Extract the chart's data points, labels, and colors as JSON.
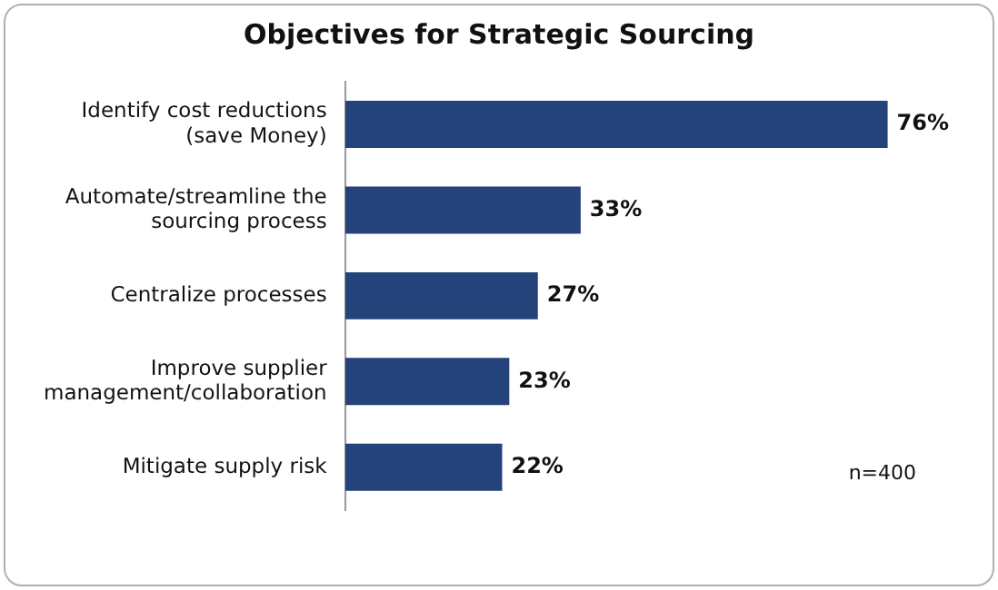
{
  "chart_data": {
    "type": "bar",
    "orientation": "horizontal",
    "title": "Objectives for Strategic Sourcing",
    "categories": [
      "Identify cost reductions (save Money)",
      "Automate/streamline the sourcing process",
      "Centralize processes",
      "Improve supplier management/collaboration",
      "Mitigate supply risk"
    ],
    "values": [
      76,
      33,
      27,
      23,
      22
    ],
    "color": "#24437a",
    "relative": false,
    "data_labels": true,
    "value_labels": [
      "76%",
      "33%",
      "27%",
      "23%",
      "22%"
    ],
    "annotations": [
      "n=400"
    ],
    "grid": false,
    "legend": false
  }
}
